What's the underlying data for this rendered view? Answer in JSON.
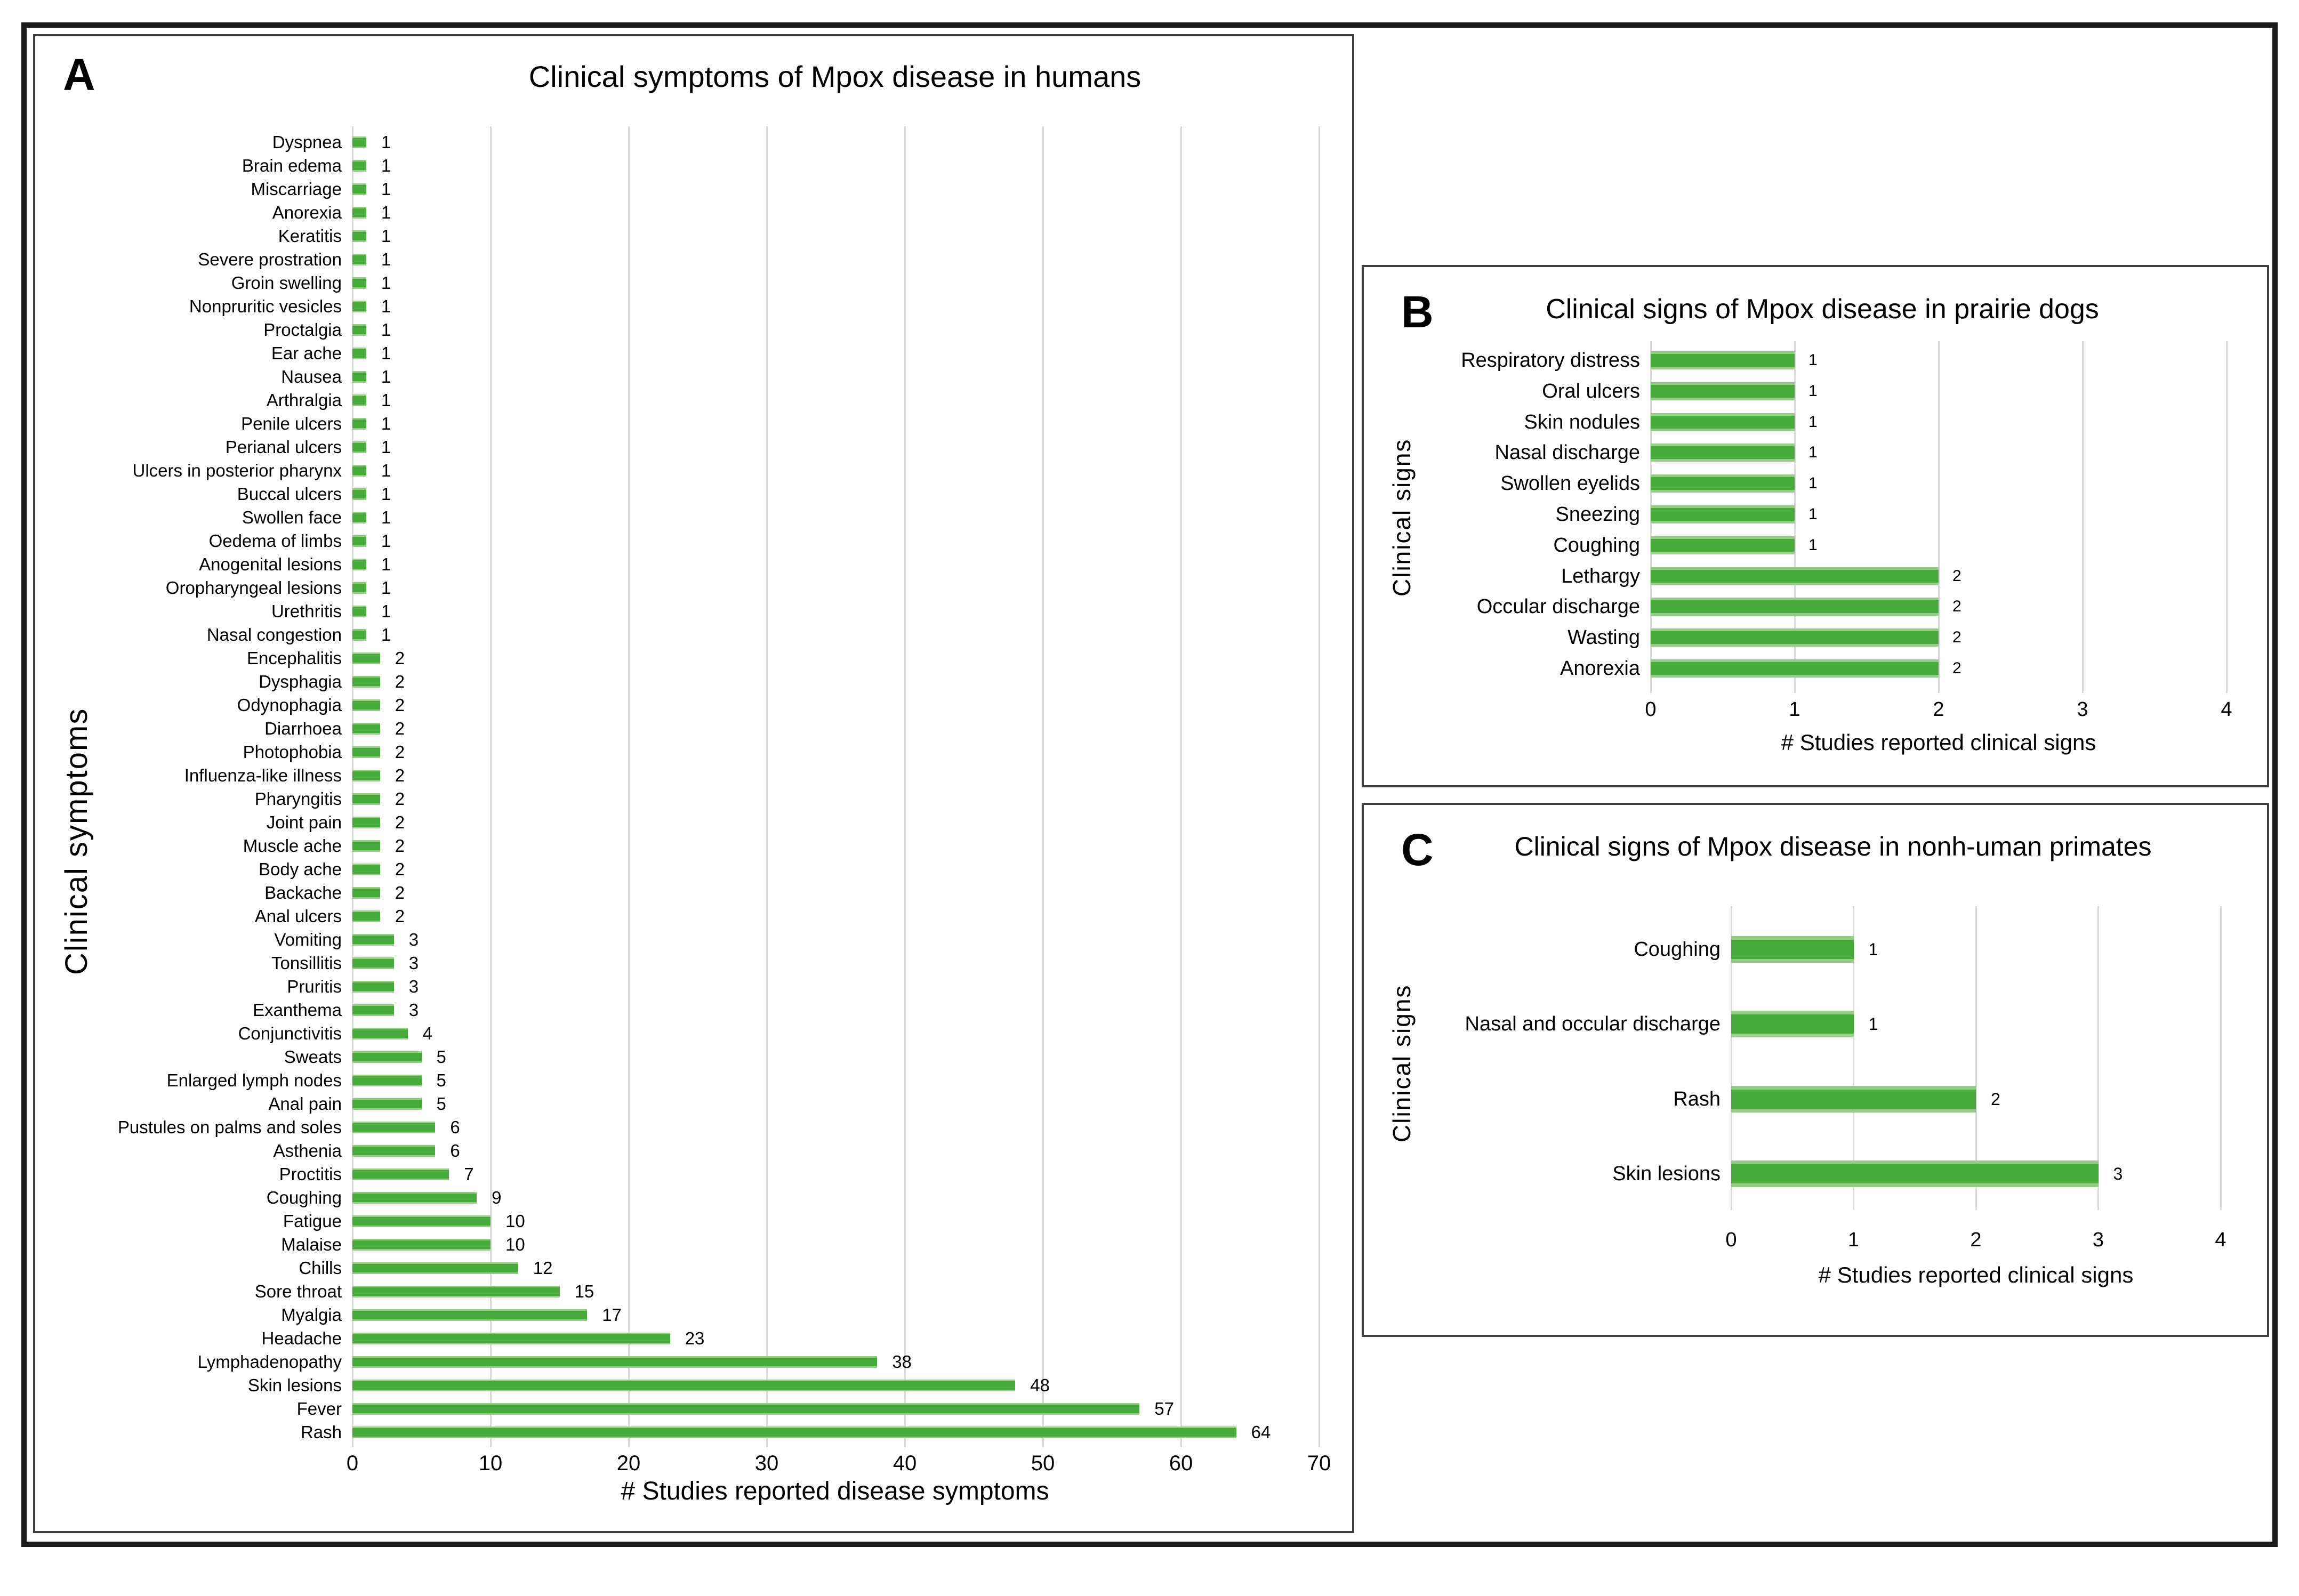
{
  "chart_data": [
    {
      "panel_letter": "A",
      "type": "bar",
      "orientation": "horizontal",
      "title": "Clinical symptoms of Mpox disease in humans",
      "xlabel": "# Studies reported disease symptoms",
      "ylabel": "Clinical symptoms",
      "xlim": [
        0,
        70
      ],
      "x_ticks": [
        0,
        10,
        20,
        30,
        40,
        50,
        60,
        70
      ],
      "grid": true,
      "legend": "none",
      "bar_color": "#47ab3c",
      "categories": [
        "Dyspnea",
        "Brain edema",
        "Miscarriage",
        "Anorexia",
        "Keratitis",
        "Severe prostration",
        "Groin swelling",
        "Nonpruritic vesicles",
        "Proctalgia",
        "Ear ache",
        "Nausea",
        "Arthralgia",
        "Penile ulcers",
        "Perianal ulcers",
        "Ulcers in posterior pharynx",
        "Buccal ulcers",
        "Swollen face",
        "Oedema of limbs",
        "Anogenital lesions",
        "Oropharyngeal lesions",
        "Urethritis",
        "Nasal congestion",
        "Encephalitis",
        "Dysphagia",
        "Odynophagia",
        "Diarrhoea",
        "Photophobia",
        "Influenza-like illness",
        "Pharyngitis",
        "Joint pain",
        "Muscle ache",
        "Body ache",
        "Backache",
        "Anal ulcers",
        "Vomiting",
        "Tonsillitis",
        "Pruritis",
        "Exanthema",
        "Conjunctivitis",
        "Sweats",
        "Enlarged lymph nodes",
        "Anal pain",
        "Pustules on palms and soles",
        "Asthenia",
        "Proctitis",
        "Coughing",
        "Fatigue",
        "Malaise",
        "Chills",
        "Sore throat",
        "Myalgia",
        "Headache",
        "Lymphadenopathy",
        "Skin lesions",
        "Fever",
        "Rash"
      ],
      "values": [
        1,
        1,
        1,
        1,
        1,
        1,
        1,
        1,
        1,
        1,
        1,
        1,
        1,
        1,
        1,
        1,
        1,
        1,
        1,
        1,
        1,
        1,
        2,
        2,
        2,
        2,
        2,
        2,
        2,
        2,
        2,
        2,
        2,
        2,
        3,
        3,
        3,
        3,
        4,
        5,
        5,
        5,
        6,
        6,
        7,
        9,
        10,
        10,
        12,
        15,
        17,
        23,
        38,
        48,
        57,
        64
      ]
    },
    {
      "panel_letter": "B",
      "type": "bar",
      "orientation": "horizontal",
      "title": "Clinical signs of Mpox disease in prairie dogs",
      "xlabel": "# Studies reported clinical signs",
      "ylabel": "Clinical signs",
      "xlim": [
        0,
        4
      ],
      "x_ticks": [
        0,
        1,
        2,
        3,
        4
      ],
      "grid": true,
      "legend": "none",
      "bar_color": "#47ab3c",
      "categories": [
        "Respiratory distress",
        "Oral ulcers",
        "Skin nodules",
        "Nasal discharge",
        "Swollen eyelids",
        "Sneezing",
        "Coughing",
        "Lethargy",
        "Occular discharge",
        "Wasting",
        "Anorexia"
      ],
      "values": [
        1,
        1,
        1,
        1,
        1,
        1,
        1,
        2,
        2,
        2,
        2
      ]
    },
    {
      "panel_letter": "C",
      "type": "bar",
      "orientation": "horizontal",
      "title": "Clinical signs of Mpox disease in nonh-uman primates",
      "xlabel": "# Studies reported clinical signs",
      "ylabel": "Clinical signs",
      "xlim": [
        0,
        4
      ],
      "x_ticks": [
        0,
        1,
        2,
        3,
        4
      ],
      "grid": true,
      "legend": "none",
      "bar_color": "#47ab3c",
      "categories": [
        "Coughing",
        "Nasal and occular discharge",
        "Rash",
        "Skin lesions"
      ],
      "values": [
        1,
        1,
        2,
        3
      ]
    }
  ]
}
